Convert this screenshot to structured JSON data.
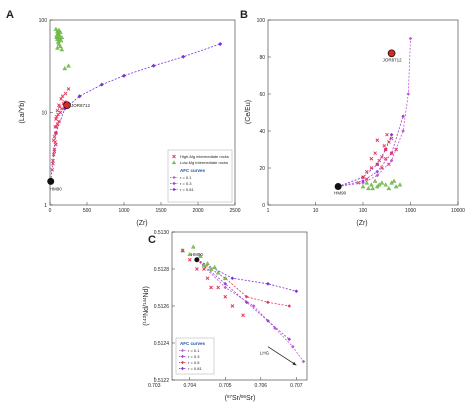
{
  "colors": {
    "high_mg": "#e8345a",
    "low_mg": "#7ec850",
    "afc_r01": "#c05ad6",
    "afc_r03": "#9a3fdb",
    "afc_r05": "#e8345a",
    "afc_r081": "#7a2fd8",
    "anchor_sample": "#111111",
    "jor_sample": "#d62828",
    "arrow": "#222222",
    "legend_title": "#1b4fa0"
  },
  "chart_data": [
    {
      "panel": "A",
      "type": "scatter",
      "xlabel": "(Zr)",
      "ylabel": "(La/Yb)",
      "xlim": [
        0,
        2500
      ],
      "ylim": [
        1,
        100
      ],
      "y_scale": "log",
      "x_ticks": [
        "0",
        "500",
        "1000",
        "1500",
        "2000",
        "2500"
      ],
      "y_ticks": [
        "1",
        "10",
        "100"
      ],
      "legend": {
        "placement": "bottom-right",
        "entries": [
          "High-Mg intermediate rocks",
          "Low-Mg intermediate rocks"
        ],
        "afc_title": "AFC curves",
        "afc_entries": [
          "r = 0.1",
          "r = 0.3",
          "r = 0.81"
        ]
      },
      "labels": [
        "HM90",
        "JOR8712"
      ],
      "points": {
        "HM90": [
          [
            10,
            1.8
          ]
        ],
        "JOR8712": [
          [
            230,
            12
          ]
        ],
        "high_mg": [
          [
            30,
            2.4
          ],
          [
            40,
            3
          ],
          [
            50,
            3.5
          ],
          [
            60,
            4
          ],
          [
            70,
            4.8
          ],
          [
            60,
            5.5
          ],
          [
            80,
            6
          ],
          [
            90,
            7
          ],
          [
            100,
            7.5
          ],
          [
            120,
            8
          ],
          [
            80,
            8.5
          ],
          [
            110,
            9.5
          ],
          [
            140,
            10
          ],
          [
            160,
            11
          ],
          [
            180,
            12.5
          ],
          [
            200,
            13
          ],
          [
            50,
            5
          ],
          [
            70,
            7
          ],
          [
            90,
            9
          ],
          [
            130,
            11.5
          ],
          [
            150,
            14
          ],
          [
            210,
            16
          ],
          [
            250,
            18
          ],
          [
            120,
            12
          ],
          [
            100,
            10.5
          ],
          [
            170,
            15
          ],
          [
            60,
            3.8
          ],
          [
            40,
            2.8
          ],
          [
            80,
            4.5
          ]
        ],
        "low_mg": [
          [
            80,
            80
          ],
          [
            100,
            75
          ],
          [
            120,
            70
          ],
          [
            90,
            65
          ],
          [
            130,
            62
          ],
          [
            110,
            58
          ],
          [
            150,
            60
          ],
          [
            100,
            50
          ],
          [
            120,
            55
          ],
          [
            140,
            52
          ],
          [
            160,
            48
          ],
          [
            90,
            68
          ],
          [
            110,
            72
          ],
          [
            130,
            66
          ],
          [
            140,
            74
          ],
          [
            100,
            62
          ],
          [
            160,
            65
          ],
          [
            120,
            78
          ]
        ],
        "low_mg_outliers": [
          [
            200,
            30
          ],
          [
            250,
            32
          ]
        ]
      },
      "afc_curve": {
        "name": "r = 0.81",
        "points": [
          [
            10,
            1.8
          ],
          [
            80,
            6
          ],
          [
            200,
            11
          ],
          [
            400,
            15
          ],
          [
            700,
            20
          ],
          [
            1000,
            25
          ],
          [
            1400,
            32
          ],
          [
            1800,
            40
          ],
          [
            2300,
            55
          ]
        ]
      }
    },
    {
      "panel": "B",
      "type": "scatter",
      "xlabel": "(Zr)",
      "ylabel": "(Ce/Eu)",
      "xlim": [
        1,
        10000
      ],
      "x_scale": "log",
      "ylim": [
        0,
        100
      ],
      "x_ticks": [
        "1",
        "10",
        "100",
        "1000",
        "10000"
      ],
      "y_ticks": [
        "0",
        "20",
        "40",
        "60",
        "80",
        "100"
      ],
      "labels": [
        "HM90",
        "JOR8712"
      ],
      "points": {
        "HM90": [
          [
            30,
            10
          ]
        ],
        "JOR8712": [
          [
            400,
            82
          ]
        ],
        "high_mg": [
          [
            80,
            12
          ],
          [
            100,
            15
          ],
          [
            120,
            18
          ],
          [
            150,
            20
          ],
          [
            200,
            22
          ],
          [
            250,
            26
          ],
          [
            300,
            30
          ],
          [
            350,
            34
          ],
          [
            400,
            36
          ],
          [
            180,
            28
          ],
          [
            220,
            24
          ],
          [
            280,
            32
          ],
          [
            320,
            38
          ],
          [
            500,
            30
          ],
          [
            150,
            25
          ],
          [
            250,
            20
          ],
          [
            200,
            35
          ],
          [
            300,
            25
          ],
          [
            400,
            28
          ],
          [
            120,
            14
          ],
          [
            350,
            22
          ]
        ],
        "low_mg": [
          [
            100,
            10
          ],
          [
            120,
            12
          ],
          [
            150,
            11
          ],
          [
            180,
            13
          ],
          [
            200,
            10
          ],
          [
            250,
            12
          ],
          [
            300,
            11
          ],
          [
            400,
            12
          ],
          [
            500,
            10
          ],
          [
            600,
            11
          ],
          [
            160,
            9
          ],
          [
            220,
            11
          ],
          [
            350,
            9
          ],
          [
            450,
            13
          ],
          [
            130,
            9
          ]
        ]
      },
      "afc_curves": [
        {
          "name": "r = 0.1",
          "points": [
            [
              30,
              10
            ],
            [
              100,
              12
            ],
            [
              200,
              16
            ],
            [
              400,
              24
            ],
            [
              700,
              40
            ],
            [
              900,
              60
            ],
            [
              1000,
              90
            ]
          ]
        },
        {
          "name": "r = 0.3",
          "points": [
            [
              30,
              10
            ],
            [
              100,
              13
            ],
            [
              200,
              18
            ],
            [
              400,
              28
            ],
            [
              700,
              48
            ]
          ]
        },
        {
          "name": "r = 0.81",
          "points": [
            [
              30,
              10
            ],
            [
              100,
              15
            ],
            [
              200,
              22
            ],
            [
              300,
              30
            ],
            [
              400,
              38
            ]
          ]
        }
      ]
    },
    {
      "panel": "C",
      "type": "scatter",
      "xlabel": "(87Sr/86Sr)",
      "ylabel": "(143Nd/144Nd)",
      "xlim": [
        0.7035,
        0.7073
      ],
      "ylim": [
        0.5122,
        0.513
      ],
      "x_ticks": [
        "0.703",
        "0.704",
        "0.705",
        "0.706",
        "0.707"
      ],
      "y_ticks": [
        "0.5122",
        "0.5124",
        "0.5126",
        "0.5128",
        "0.5130"
      ],
      "legend": {
        "placement": "bottom-right",
        "afc_title": "AFC curves",
        "afc_entries": [
          "r = 0.1",
          "r = 0.3",
          "r = 0.5",
          "r = 0.81"
        ]
      },
      "labels": [
        "HM90",
        "LHG"
      ],
      "points": {
        "HM90": [
          [
            0.7042,
            0.51285
          ]
        ],
        "high_mg": [
          [
            0.7038,
            0.5129
          ],
          [
            0.704,
            0.51285
          ],
          [
            0.7042,
            0.5128
          ],
          [
            0.7045,
            0.51275
          ],
          [
            0.7048,
            0.5127
          ],
          [
            0.7052,
            0.5126
          ],
          [
            0.7046,
            0.5127
          ],
          [
            0.7044,
            0.5128
          ],
          [
            0.705,
            0.51265
          ],
          [
            0.7055,
            0.51255
          ]
        ],
        "low_mg": [
          [
            0.7038,
            0.5129
          ],
          [
            0.704,
            0.51288
          ],
          [
            0.7042,
            0.51285
          ],
          [
            0.7044,
            0.51282
          ],
          [
            0.7046,
            0.5128
          ],
          [
            0.7048,
            0.51278
          ],
          [
            0.705,
            0.51275
          ],
          [
            0.7041,
            0.51292
          ],
          [
            0.7043,
            0.51287
          ],
          [
            0.7045,
            0.51283
          ],
          [
            0.7047,
            0.51281
          ]
        ]
      },
      "afc_curves": [
        {
          "name": "r = 0.1",
          "points": [
            [
              0.7042,
              0.51285
            ],
            [
              0.705,
              0.5127
            ],
            [
              0.7058,
              0.5126
            ],
            [
              0.7064,
              0.51248
            ],
            [
              0.7069,
              0.51238
            ],
            [
              0.7072,
              0.5123
            ]
          ]
        },
        {
          "name": "r = 0.3",
          "points": [
            [
              0.7042,
              0.51285
            ],
            [
              0.705,
              0.51272
            ],
            [
              0.7056,
              0.51262
            ],
            [
              0.7062,
              0.51252
            ],
            [
              0.7068,
              0.51242
            ]
          ]
        },
        {
          "name": "r = 0.5",
          "points": [
            [
              0.7042,
              0.51285
            ],
            [
              0.705,
              0.51275
            ],
            [
              0.7056,
              0.51265
            ],
            [
              0.7062,
              0.51262
            ],
            [
              0.7068,
              0.5126
            ]
          ]
        },
        {
          "name": "r = 0.81",
          "points": [
            [
              0.7042,
              0.51285
            ],
            [
              0.7052,
              0.51275
            ],
            [
              0.7062,
              0.51272
            ],
            [
              0.707,
              0.51268
            ]
          ]
        }
      ],
      "arrow_label": "LHG"
    }
  ]
}
